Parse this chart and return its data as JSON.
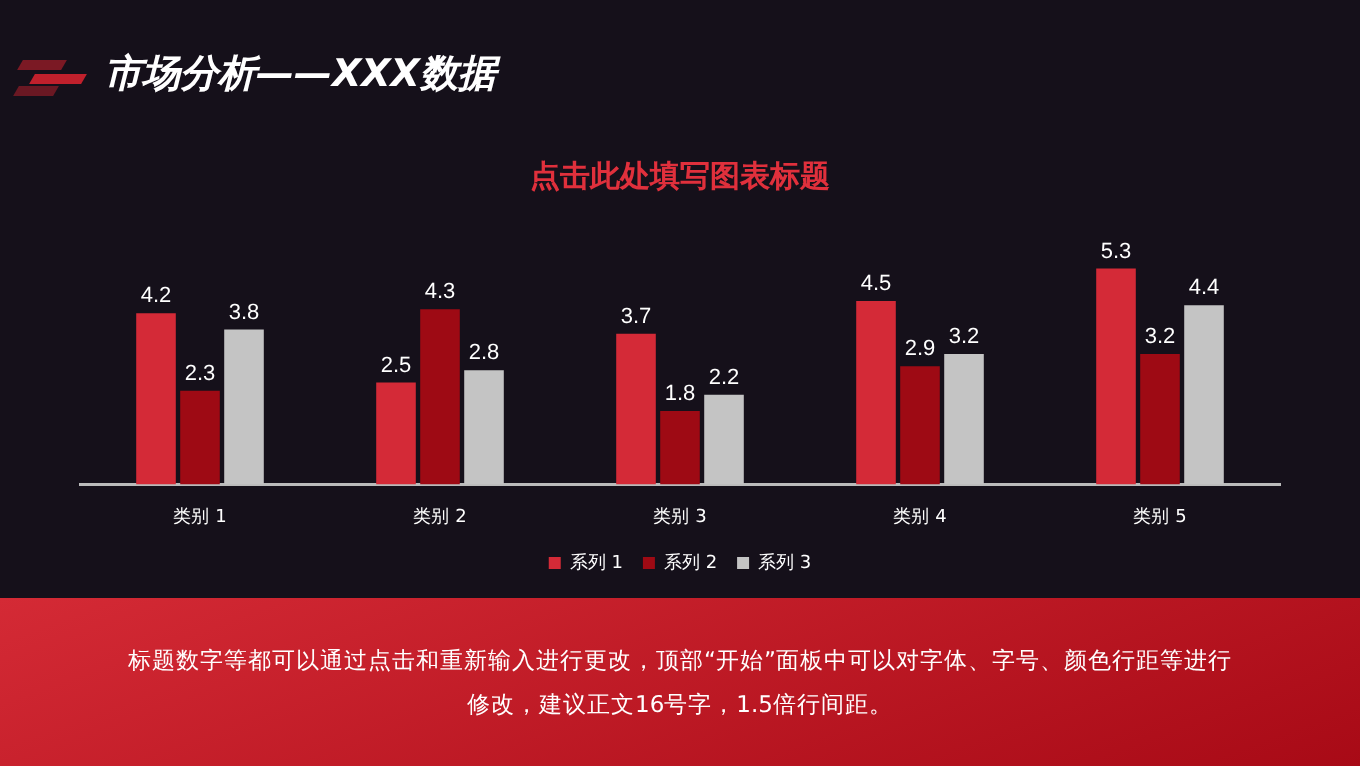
{
  "chart_data": {
    "type": "bar",
    "title": "点击此处填写图表标题",
    "categories": [
      "类别 1",
      "类别 2",
      "类别 3",
      "类别 4",
      "类别 5"
    ],
    "series": [
      {
        "name": "系列 1",
        "color": "#d42a37",
        "values": [
          4.2,
          2.5,
          3.7,
          4.5,
          5.3
        ]
      },
      {
        "name": "系列 2",
        "color": "#9e0a14",
        "values": [
          2.3,
          4.3,
          1.8,
          2.9,
          3.2
        ]
      },
      {
        "name": "系列 3",
        "color": "#c4c4c4",
        "values": [
          3.8,
          2.8,
          2.2,
          3.2,
          4.4
        ]
      }
    ],
    "data_labels": true,
    "legend": "bottom",
    "tick_labels": "x",
    "annotations": [
      "市场分析——XXX数据",
      "标题数字等都可以通过点击和重新输入进行更改，顶部“开始”面板中可以对字体、字号、颜色行距等进行修改，建议正文16号字，1.5倍行间距。"
    ]
  }
}
